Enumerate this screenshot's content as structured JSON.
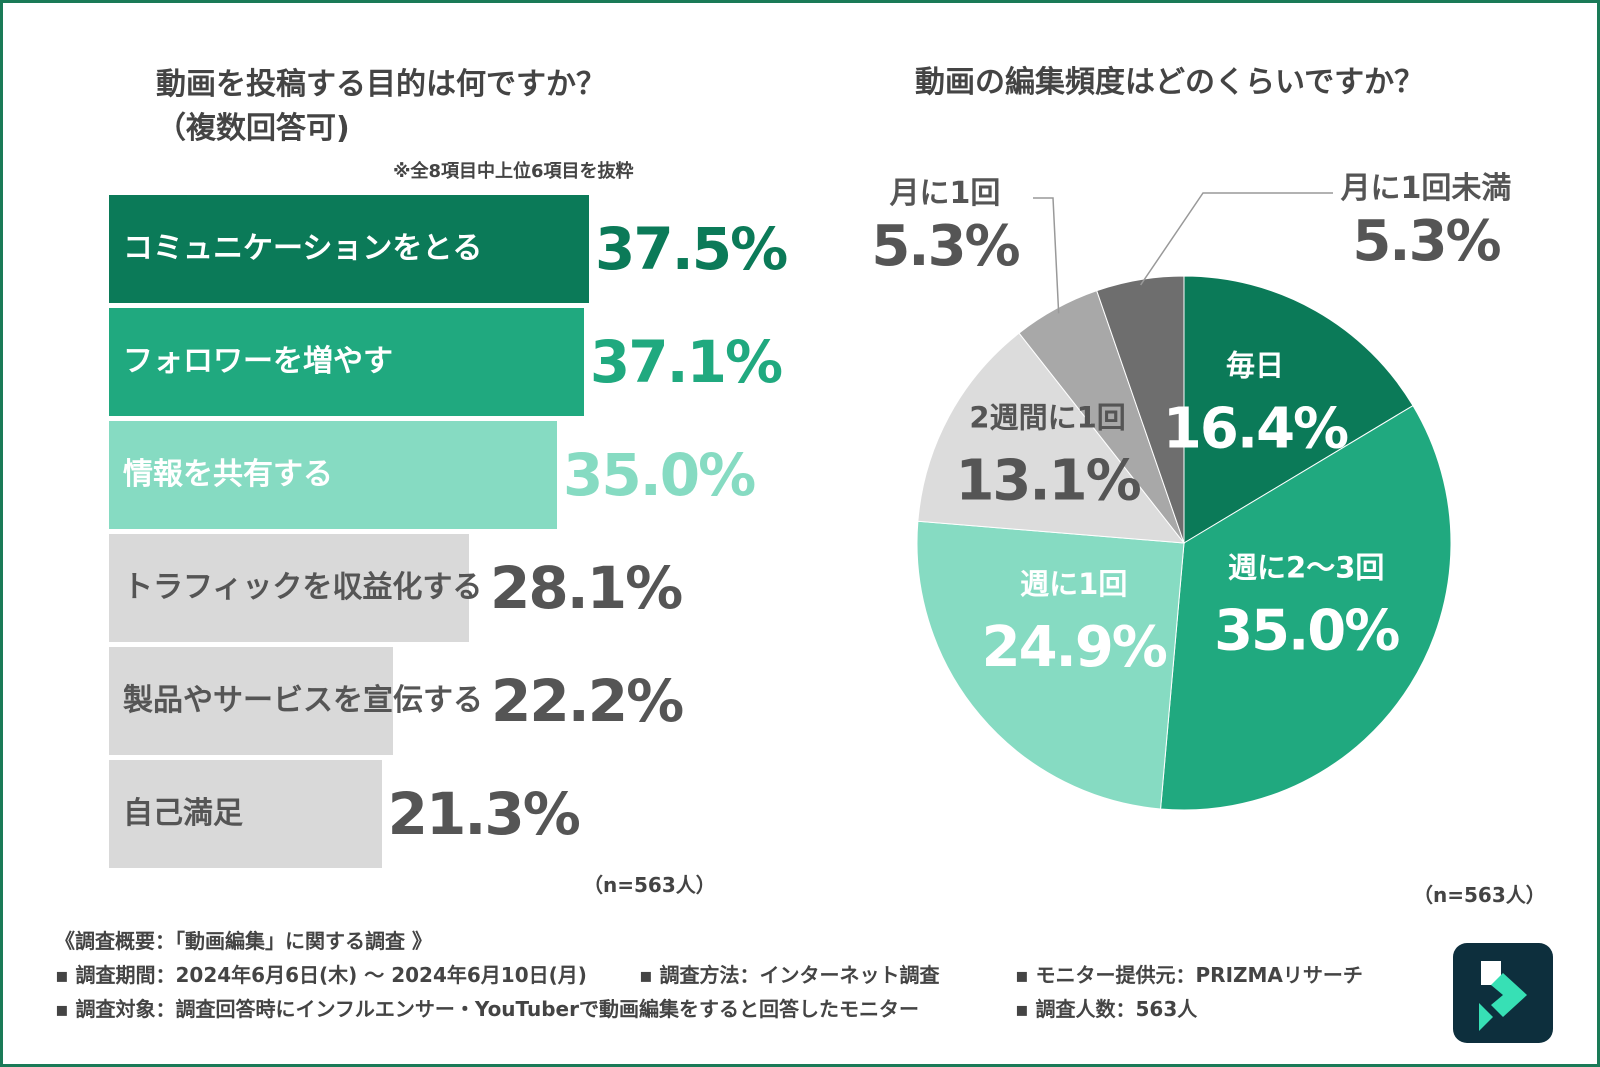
{
  "colors": {
    "dark_green": "#0b7a58",
    "mid_green": "#20a97f",
    "light_green": "#86dbc2",
    "gray_bar": "#d9d9d9",
    "gray_text": "#555555",
    "pie_dark_gray": "#6e6e6e",
    "pie_mid_gray": "#a8a8a8",
    "pie_light_gray": "#dcdcdc",
    "logo_bg": "#0d2f3d",
    "logo_accent": "#37e0b5"
  },
  "left_chart": {
    "title_line1": "動画を投稿する目的は何ですか？",
    "title_line2": "（複数回答可)",
    "note": "※全8項目中上位6項目を抜粋",
    "n_label": "（n=563人）"
  },
  "right_chart": {
    "title": "動画の編集頻度はどのくらいですか？",
    "n_label": "（n=563人）"
  },
  "chart_data": [
    {
      "type": "bar",
      "orientation": "horizontal",
      "title": "動画を投稿する目的は何ですか？（複数回答可)",
      "categories": [
        "コミュニケーションをとる",
        "フォロワーを増やす",
        "情報を共有する",
        "トラフィックを収益化する",
        "製品やサービスを宣伝する",
        "自己満足"
      ],
      "values": [
        37.5,
        37.1,
        35.0,
        28.1,
        22.2,
        21.3
      ],
      "value_labels": [
        "37.5%",
        "37.1%",
        "35.0%",
        "28.1%",
        "22.2%",
        "21.3%"
      ],
      "unit": "%",
      "xlim": [
        0,
        45
      ]
    },
    {
      "type": "pie",
      "title": "動画の編集頻度はどのくらいですか？",
      "labels": [
        "毎日",
        "週に2〜3回",
        "週に1回",
        "2週間に1回",
        "月に1回",
        "月に1回未満"
      ],
      "values": [
        16.4,
        35.0,
        24.9,
        13.1,
        5.3,
        5.3
      ],
      "value_labels": [
        "16.4%",
        "35.0%",
        "24.9%",
        "13.1%",
        "5.3%",
        "5.3%"
      ],
      "start": "12 o'clock",
      "direction": "clockwise"
    }
  ],
  "footer": {
    "heading": "《調査概要：「動画編集」に関する調査 》",
    "period": "▪ 調査期間：2024年6月6日(木) 〜 2024年6月10日(月)",
    "method": "▪ 調査方法：インターネット調査",
    "provider": "▪ モニター提供元：PRIZMAリサーチ",
    "target": "▪ 調査対象：調査回答時にインフルエンサー・YouTuberで動画編集をすると回答したモニター",
    "count": "▪ 調査人数：563人"
  },
  "logo": {
    "icon": "filmora-logo-icon"
  }
}
